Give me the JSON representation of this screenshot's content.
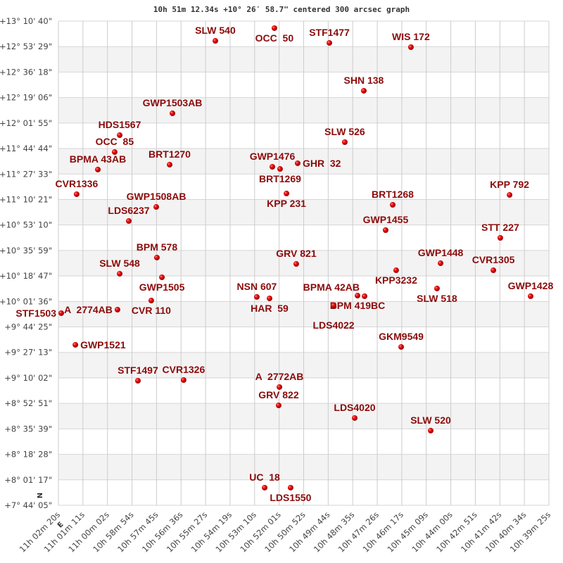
{
  "chart_data": {
    "type": "scatter",
    "title": "10h 51m 12.34s +10° 26′ 58.7\" centered 300 arcsec graph",
    "xlabel": "",
    "ylabel": "",
    "x_unit": "RA (hours, decreasing to the right)",
    "y_unit": "Dec (degrees)",
    "xlim": [
      11.03889,
      10.65694
    ],
    "ylim": [
      7.73472,
      13.17778
    ],
    "grid": true,
    "alternating_row_bands": true,
    "marker_color": "#dd0000",
    "label_color": "#8b0a0a",
    "x_ticks": [
      "11h 02m 20s",
      "11h 01m 11s",
      "11h 00m 02s",
      "10h 58m 54s",
      "10h 57m 45s",
      "10h 56m 36s",
      "10h 55m 27s",
      "10h 54m 19s",
      "10h 53m 10s",
      "10h 52m 01s",
      "10h 50m 52s",
      "10h 49m 44s",
      "10h 48m 35s",
      "10h 47m 26s",
      "10h 46m 17s",
      "10h 45m 09s",
      "10h 44m 00s",
      "10h 42m 51s",
      "10h 41m 42s",
      "10h 40m 34s",
      "10h 39m 25s"
    ],
    "y_ticks": [
      "+13° 10' 40\"",
      "+12° 53' 29\"",
      "+12° 36' 18\"",
      "+12° 19' 06\"",
      "+12° 01' 55\"",
      "+11° 44' 44\"",
      "+11° 27' 33\"",
      "+11° 10' 21\"",
      "+10° 53' 10\"",
      "+10° 35' 59\"",
      "+10° 18' 47\"",
      "+10° 01' 36\"",
      "+9° 44' 25\"",
      "+9° 27' 13\"",
      "+9° 10' 02\"",
      "+8° 52' 51\"",
      "+8° 35' 39\"",
      "+8° 18' 28\"",
      "+8° 01' 17\"",
      "+7° 44' 05\""
    ],
    "compass": {
      "north": "N",
      "east": "E"
    },
    "points": [
      {
        "name": "SLW 540",
        "ra": 10.9167,
        "dec": 12.956
      },
      {
        "name": "OCC  50",
        "ra": 10.8707,
        "dec": 13.099
      },
      {
        "name": "STF1477",
        "ra": 10.8279,
        "dec": 12.933
      },
      {
        "name": "WIS 172",
        "ra": 10.7644,
        "dec": 12.885
      },
      {
        "name": "SHN 138",
        "ra": 10.8011,
        "dec": 12.395
      },
      {
        "name": "GWP1503AB",
        "ra": 10.9501,
        "dec": 12.141
      },
      {
        "name": "HDS1567",
        "ra": 10.9912,
        "dec": 11.896
      },
      {
        "name": "OCC  85",
        "ra": 10.9951,
        "dec": 11.706
      },
      {
        "name": "BPMA 43AB",
        "ra": 11.0082,
        "dec": 11.509
      },
      {
        "name": "BRT1270",
        "ra": 10.9523,
        "dec": 11.564
      },
      {
        "name": "SLW 526",
        "ra": 10.8159,
        "dec": 11.817
      },
      {
        "name": "GWP1476",
        "ra": 10.8723,
        "dec": 11.54
      },
      {
        "name": "BRT1269",
        "ra": 10.8663,
        "dec": 11.516
      },
      {
        "name": "GHR  32",
        "ra": 10.8526,
        "dec": 11.58
      },
      {
        "name": "KPP 231",
        "ra": 10.8613,
        "dec": 11.24
      },
      {
        "name": "CVR1336",
        "ra": 11.0247,
        "dec": 11.232
      },
      {
        "name": "GWP1508AB",
        "ra": 10.9627,
        "dec": 11.089
      },
      {
        "name": "LDS6237",
        "ra": 10.9841,
        "dec": 10.931
      },
      {
        "name": "BRT1268",
        "ra": 10.7786,
        "dec": 11.113
      },
      {
        "name": "KPP 792",
        "ra": 10.6876,
        "dec": 11.224
      },
      {
        "name": "GWP1455",
        "ra": 10.7841,
        "dec": 10.828
      },
      {
        "name": "STT 227",
        "ra": 10.6948,
        "dec": 10.741
      },
      {
        "name": "BPM 578",
        "ra": 10.9622,
        "dec": 10.52
      },
      {
        "name": "GRV 821",
        "ra": 10.8537,
        "dec": 10.448
      },
      {
        "name": "GWP1448",
        "ra": 10.7413,
        "dec": 10.456
      },
      {
        "name": "KPP3232",
        "ra": 10.7759,
        "dec": 10.377
      },
      {
        "name": "CVR1305",
        "ra": 10.7002,
        "dec": 10.377
      },
      {
        "name": "SLW 548",
        "ra": 10.9912,
        "dec": 10.338
      },
      {
        "name": "GWP1505",
        "ra": 10.9583,
        "dec": 10.298
      },
      {
        "name": "SLW 518",
        "ra": 10.7441,
        "dec": 10.172
      },
      {
        "name": "NSN 607",
        "ra": 10.8844,
        "dec": 10.077
      },
      {
        "name": "HAR  59",
        "ra": 10.8745,
        "dec": 10.061
      },
      {
        "name": "BPM 419BC",
        "ra": 10.806,
        "dec": 10.092
      },
      {
        "name": "BPMA 42AB",
        "ra": 10.8005,
        "dec": 10.085
      },
      {
        "name": "GWP1428",
        "ra": 10.6712,
        "dec": 10.085
      },
      {
        "name": "CVR 110",
        "ra": 10.9666,
        "dec": 10.037
      },
      {
        "name": "LDS4022",
        "ra": 10.8246,
        "dec": 9.982
      },
      {
        "name": "A  2774AB",
        "ra": 10.9929,
        "dec": 9.934
      },
      {
        "name": "STF1503",
        "ra": 11.0367,
        "dec": 9.895
      },
      {
        "name": "GWP1521",
        "ra": 11.0257,
        "dec": 9.539
      },
      {
        "name": "GKM9549",
        "ra": 10.772,
        "dec": 9.515
      },
      {
        "name": "STF1497",
        "ra": 10.977,
        "dec": 9.135
      },
      {
        "name": "CVR1326",
        "ra": 10.9414,
        "dec": 9.143
      },
      {
        "name": "A  2772AB",
        "ra": 10.8668,
        "dec": 9.064
      },
      {
        "name": "GRV 822",
        "ra": 10.8674,
        "dec": 8.858
      },
      {
        "name": "LDS4020",
        "ra": 10.8082,
        "dec": 8.716
      },
      {
        "name": "SLW 520",
        "ra": 10.749,
        "dec": 8.574
      },
      {
        "name": "UC  18",
        "ra": 10.8783,
        "dec": 7.933
      },
      {
        "name": "LDS1550",
        "ra": 10.8581,
        "dec": 7.933
      }
    ]
  }
}
